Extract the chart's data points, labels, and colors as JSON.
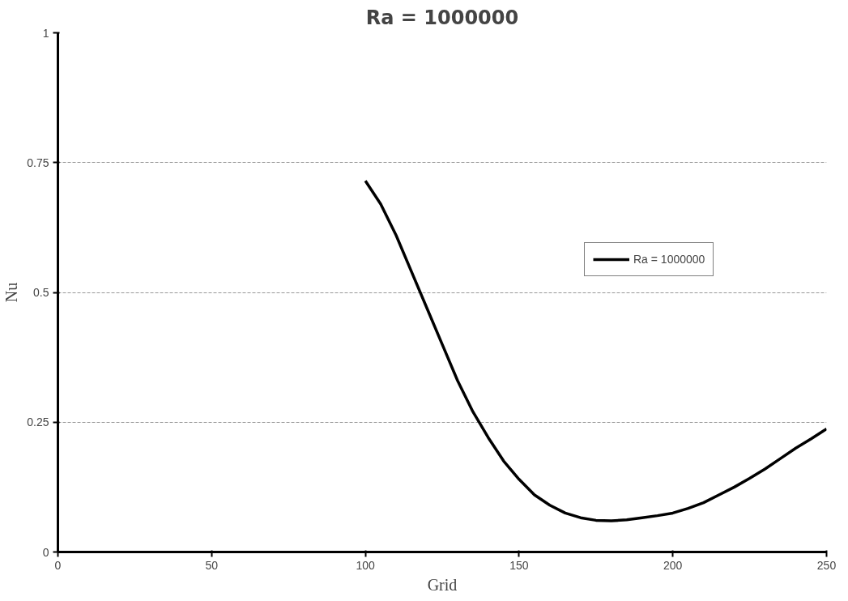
{
  "chart_data": {
    "type": "line",
    "title": "Ra = 1000000",
    "xlabel": "Grid",
    "ylabel": "Nu",
    "xlim": [
      0,
      250
    ],
    "xticks": [
      0,
      50,
      100,
      150,
      200,
      250
    ],
    "ylim": [
      0,
      1
    ],
    "yticks": [
      0,
      0.25,
      0.5,
      0.75,
      1
    ],
    "grid": "y",
    "legend": "right",
    "series": [
      {
        "name": "Ra = 1000000",
        "color": "#000000",
        "x": [
          100,
          105,
          110,
          115,
          120,
          125,
          130,
          135,
          140,
          145,
          150,
          155,
          160,
          165,
          170,
          175,
          180,
          185,
          190,
          195,
          200,
          205,
          210,
          215,
          220,
          225,
          230,
          235,
          240,
          245,
          250
        ],
        "values": [
          0.715,
          0.67,
          0.61,
          0.54,
          0.47,
          0.4,
          0.33,
          0.27,
          0.22,
          0.175,
          0.14,
          0.11,
          0.09,
          0.075,
          0.066,
          0.061,
          0.06,
          0.062,
          0.066,
          0.07,
          0.075,
          0.084,
          0.095,
          0.11,
          0.125,
          0.142,
          0.16,
          0.18,
          0.2,
          0.218,
          0.237
        ]
      }
    ]
  }
}
